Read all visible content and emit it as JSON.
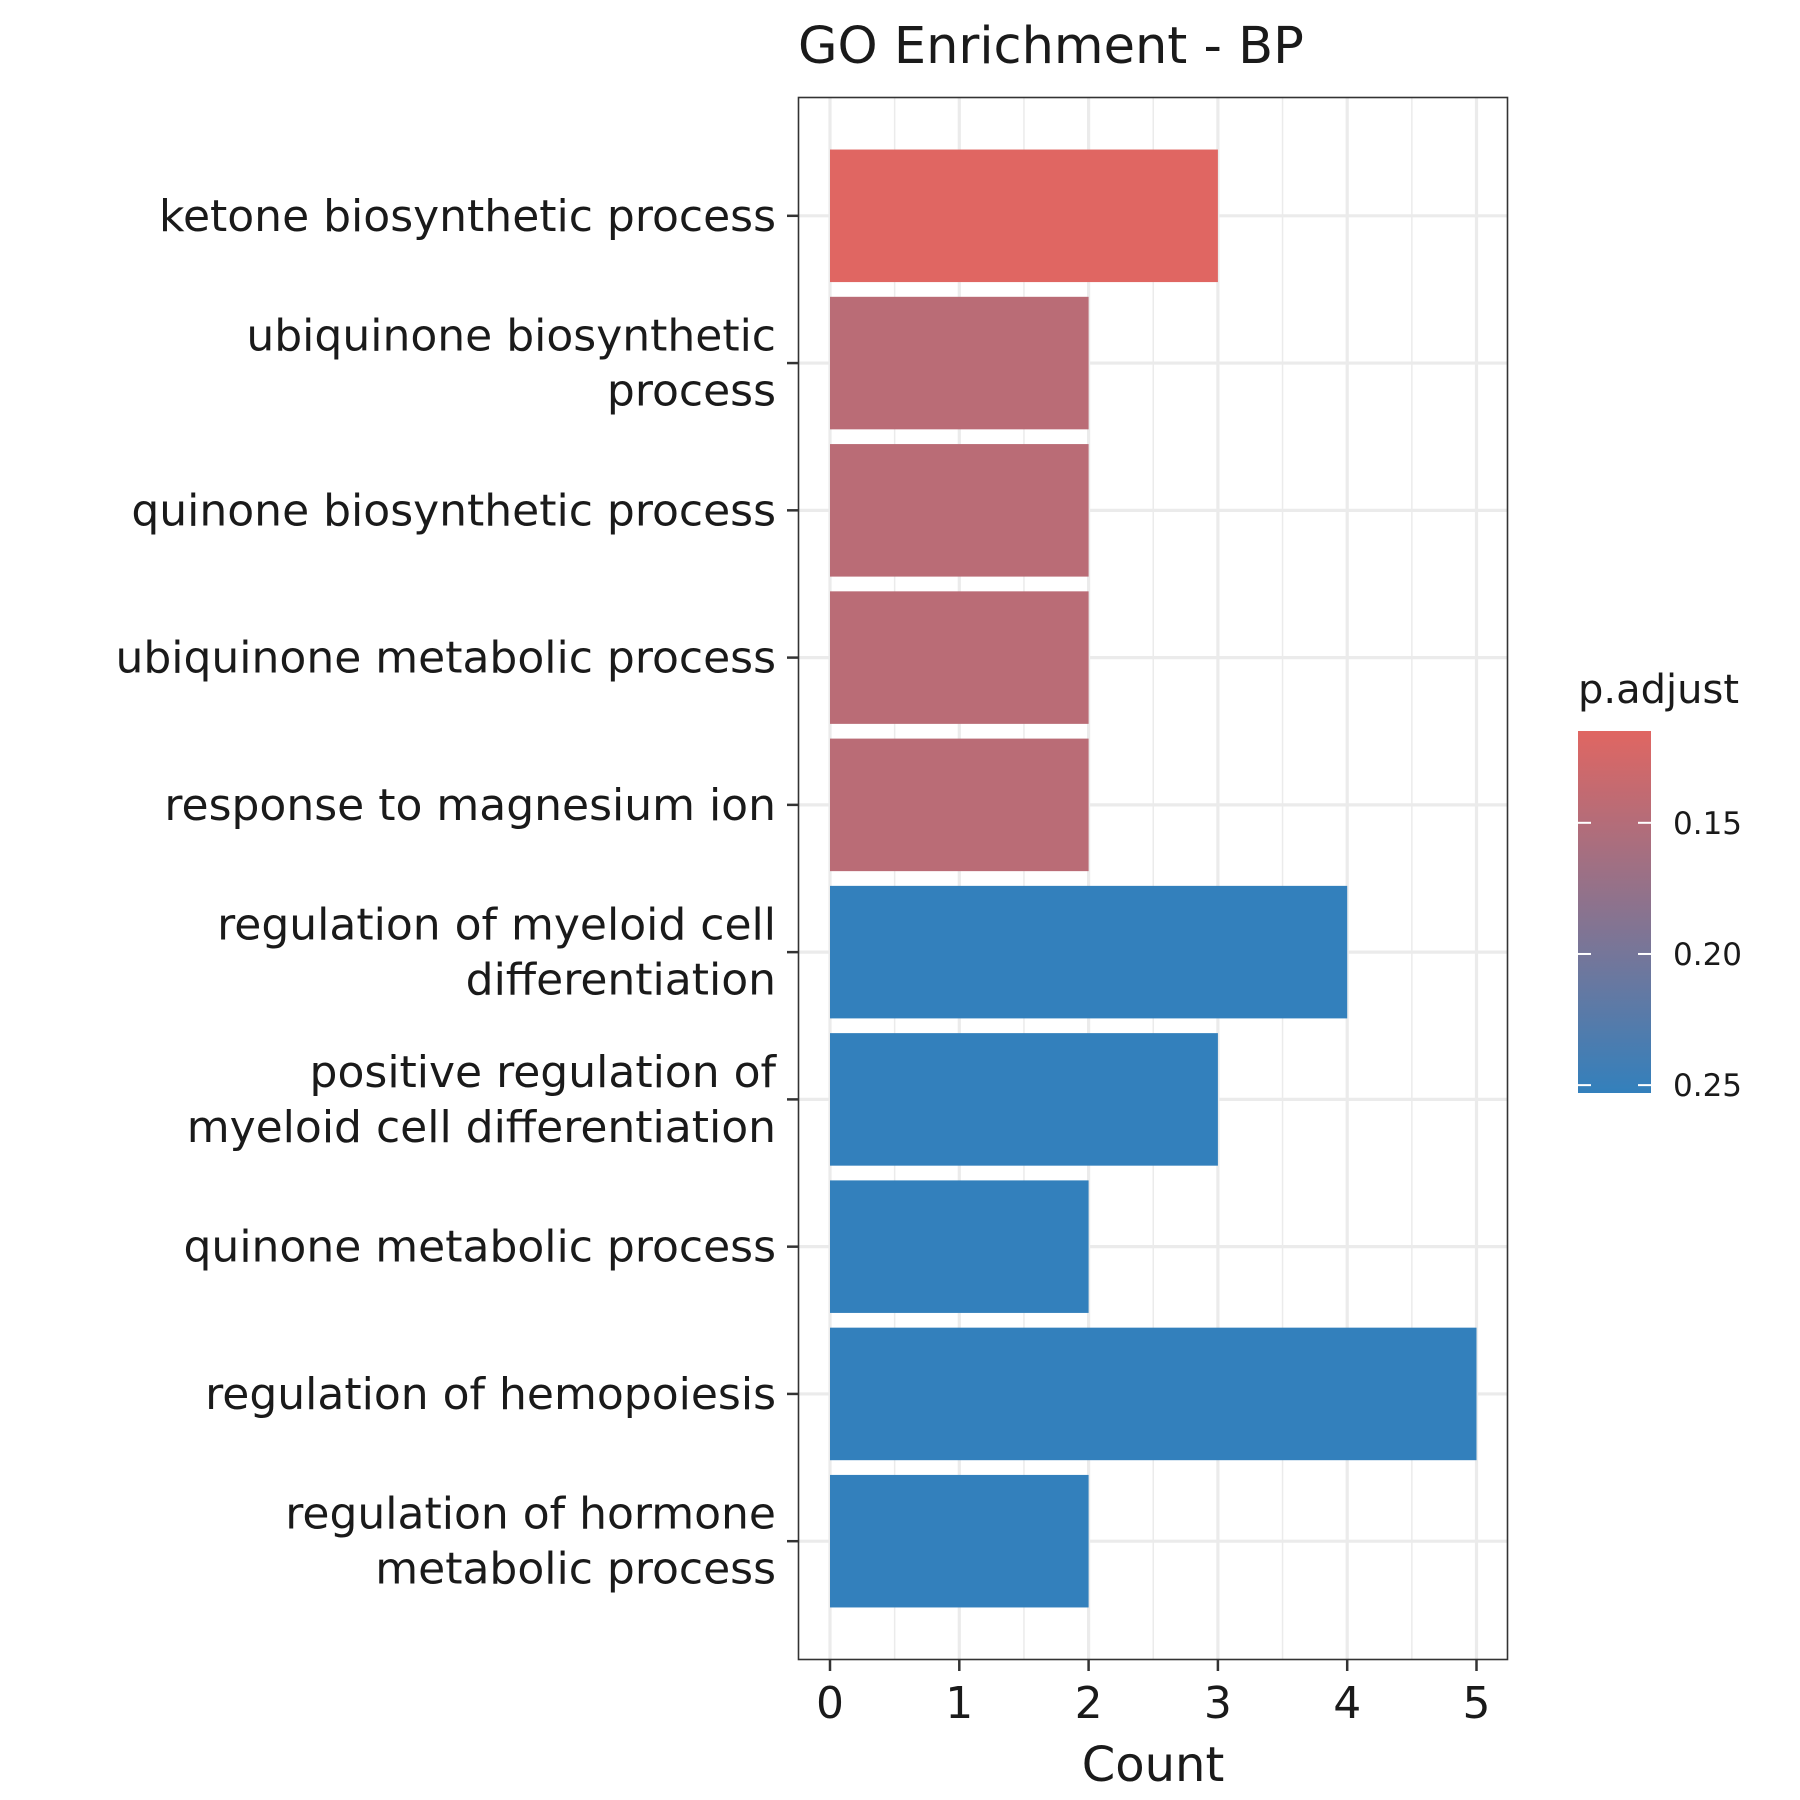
{
  "chart_data": {
    "type": "bar",
    "orientation": "horizontal",
    "title": "GO Enrichment - BP",
    "xlabel": "Count",
    "ylabel": "",
    "xlim": [
      0,
      5
    ],
    "x_ticks": [
      "0",
      "1",
      "2",
      "3",
      "4",
      "5"
    ],
    "grid": true,
    "legend": {
      "title": "p.adjust",
      "placement": "right",
      "ticks": [
        "0.15",
        "0.20",
        "0.25"
      ],
      "range": [
        0.115,
        0.253
      ],
      "low_color": "#E06662",
      "high_color": "#3380BC"
    },
    "categories": [
      [
        "ketone biosynthetic process"
      ],
      [
        "ubiquinone biosynthetic",
        "process"
      ],
      [
        "quinone biosynthetic process"
      ],
      [
        "ubiquinone metabolic process"
      ],
      [
        "response to magnesium ion"
      ],
      [
        "regulation of myeloid cell",
        "differentiation"
      ],
      [
        "positive regulation of",
        "myeloid cell differentiation"
      ],
      [
        "quinone metabolic process"
      ],
      [
        "regulation of hemopoiesis"
      ],
      [
        "regulation of hormone",
        "metabolic process"
      ]
    ],
    "values": [
      3,
      2,
      2,
      2,
      2,
      4,
      3,
      2,
      5,
      2
    ],
    "p_adjust": [
      0.115,
      0.145,
      0.145,
      0.145,
      0.145,
      0.253,
      0.253,
      0.253,
      0.253,
      0.253
    ]
  }
}
